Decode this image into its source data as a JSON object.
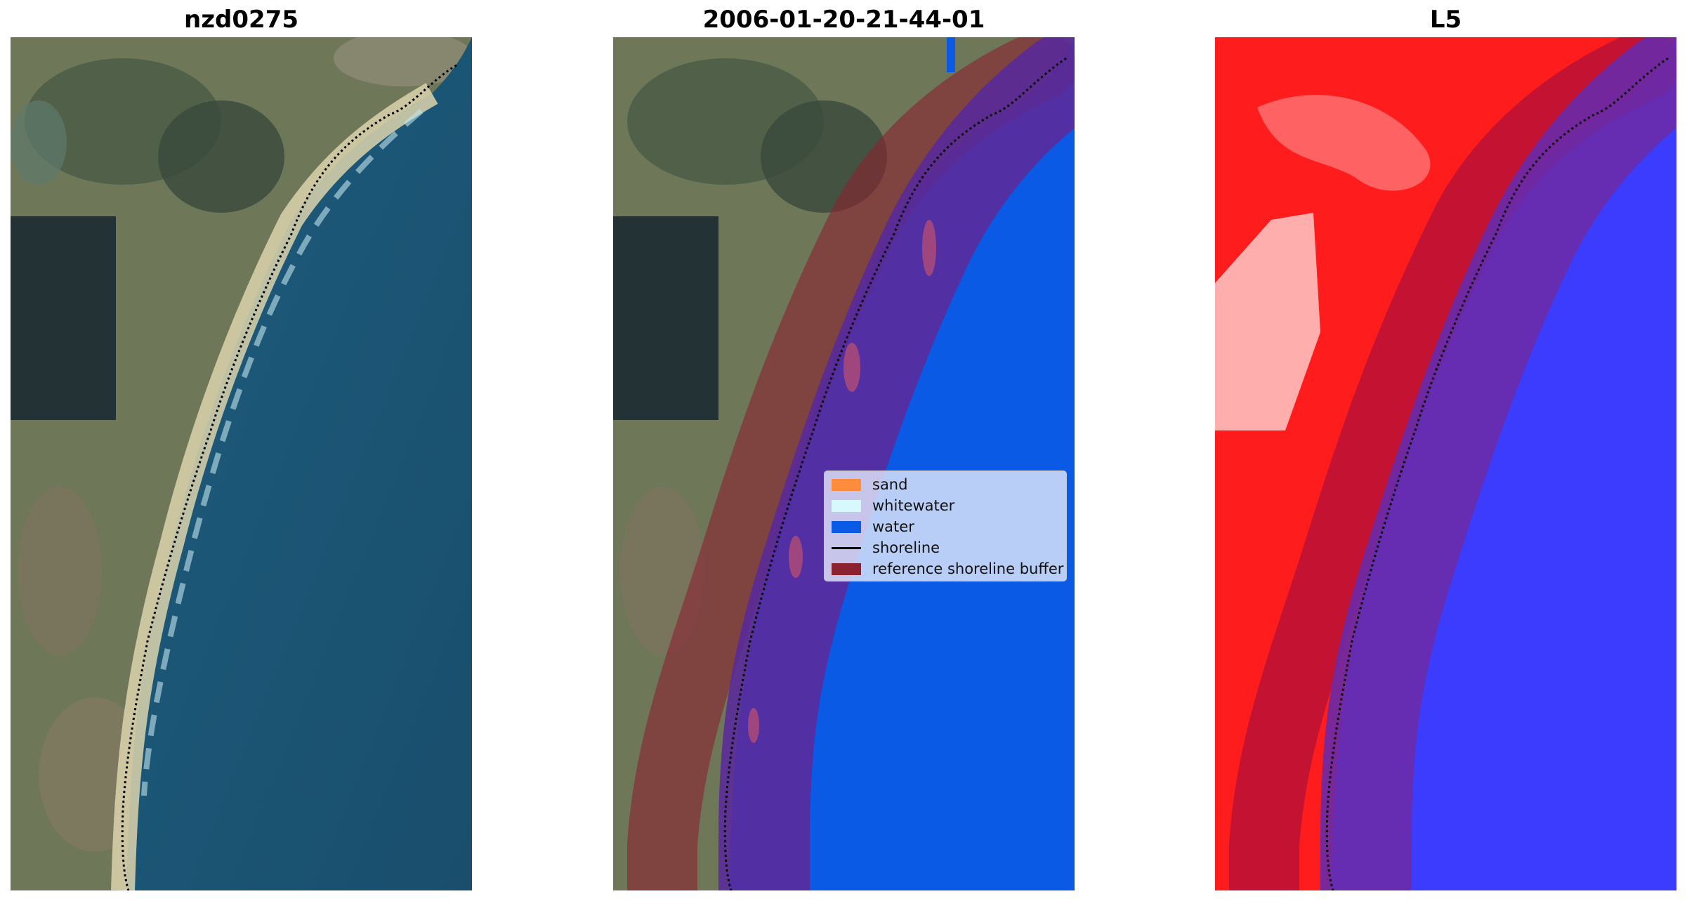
{
  "panels": [
    {
      "title": "nzd0275"
    },
    {
      "title": "2006-01-20-21-44-01"
    },
    {
      "title": "L5"
    }
  ],
  "legend": {
    "items": [
      {
        "label": "sand",
        "color": "#ff8c3c",
        "kind": "patch"
      },
      {
        "label": "whitewater",
        "color": "#d8f8ff",
        "kind": "patch"
      },
      {
        "label": "water",
        "color": "#0a5ae6",
        "kind": "patch"
      },
      {
        "label": "shoreline",
        "color": "#000000",
        "kind": "line"
      },
      {
        "label": "reference shoreline buffer",
        "color": "#8b2230",
        "kind": "patch"
      }
    ]
  },
  "colors": {
    "water_class": "#0a5ae6",
    "buffer_overlay": "#8b2230",
    "ocean_rgb": "#1d5777",
    "land_rgb": "#6e7a58",
    "sand_rgb": "#e6dcb4",
    "l5_land": "#ff1a1a",
    "l5_water": "#3c3cff"
  }
}
